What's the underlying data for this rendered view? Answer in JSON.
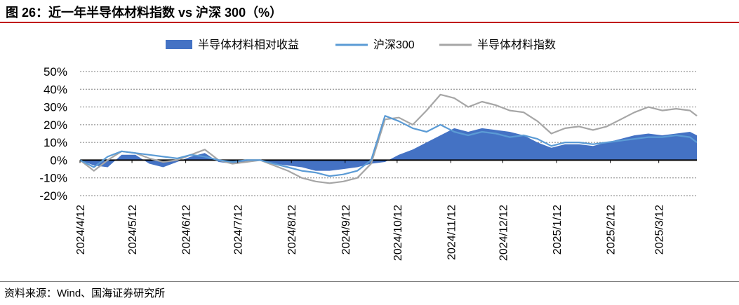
{
  "title": "图 26：近一年半导体材料指数 vs 沪深 300（%）",
  "source": "资料来源：Wind、国海证券研究所",
  "colors": {
    "relative": "#4472c4",
    "hs300": "#5b9bd5",
    "index": "#a6a6a6",
    "rule": "#c00000"
  },
  "chart_data": {
    "type": "line",
    "title": "",
    "xlabel": "",
    "ylabel": "",
    "ylim": [
      -20,
      50
    ],
    "yticks": [
      "50%",
      "40%",
      "30%",
      "20%",
      "10%",
      "0%",
      "-10%",
      "-20%"
    ],
    "xticks": [
      "2024/4/12",
      "2024/5/12",
      "2024/6/12",
      "2024/7/12",
      "2024/8/12",
      "2024/9/12",
      "2024/10/12",
      "2024/11/12",
      "2024/12/12",
      "2025/1/12",
      "2025/2/12",
      "2025/3/12"
    ],
    "grid": true,
    "legend": "top-center",
    "x": [
      "2024/4/12",
      "2024/4/20",
      "2024/4/28",
      "2024/5/6",
      "2024/5/14",
      "2024/5/22",
      "2024/5/30",
      "2024/6/7",
      "2024/6/15",
      "2024/6/23",
      "2024/7/1",
      "2024/7/9",
      "2024/7/17",
      "2024/7/25",
      "2024/8/2",
      "2024/8/10",
      "2024/8/18",
      "2024/8/26",
      "2024/9/3",
      "2024/9/11",
      "2024/9/19",
      "2024/9/27",
      "2024/10/5",
      "2024/10/13",
      "2024/10/21",
      "2024/10/29",
      "2024/11/6",
      "2024/11/14",
      "2024/11/22",
      "2024/11/30",
      "2024/12/8",
      "2024/12/16",
      "2024/12/24",
      "2025/1/1",
      "2025/1/9",
      "2025/1/17",
      "2025/1/25",
      "2025/2/2",
      "2025/2/10",
      "2025/2/18",
      "2025/2/26",
      "2025/3/6",
      "2025/3/14",
      "2025/3/22",
      "2025/3/30",
      "2025/4/3"
    ],
    "series": [
      {
        "name": "半导体材料相对收益",
        "type": "area",
        "values": [
          0,
          -3,
          -4,
          3,
          3,
          -2,
          -4,
          -1,
          2,
          4,
          -1,
          -2,
          -1,
          0,
          -2,
          -3,
          -4,
          -6,
          -6,
          -5,
          -4,
          -2,
          -1,
          3,
          6,
          10,
          14,
          18,
          16,
          18,
          17,
          16,
          14,
          10,
          7,
          9,
          9,
          8,
          10,
          12,
          14,
          15,
          14,
          15,
          16,
          14
        ]
      },
      {
        "name": "沪深300",
        "values": [
          0,
          -4,
          2,
          5,
          4,
          3,
          2,
          1,
          3,
          2,
          0,
          -1,
          0,
          0,
          -2,
          -4,
          -6,
          -7,
          -9,
          -8,
          -6,
          0,
          25,
          22,
          18,
          16,
          20,
          16,
          14,
          16,
          15,
          13,
          14,
          12,
          8,
          10,
          10,
          9,
          10,
          11,
          12,
          13,
          13,
          14,
          13,
          10
        ]
      },
      {
        "name": "半导体材料指数",
        "values": [
          0,
          -6,
          0,
          5,
          4,
          1,
          -1,
          0,
          3,
          6,
          0,
          -2,
          -1,
          0,
          -3,
          -6,
          -10,
          -12,
          -13,
          -12,
          -10,
          -2,
          23,
          24,
          20,
          28,
          37,
          35,
          30,
          33,
          31,
          28,
          27,
          22,
          15,
          18,
          19,
          17,
          19,
          23,
          27,
          30,
          28,
          29,
          28,
          25
        ]
      }
    ]
  }
}
